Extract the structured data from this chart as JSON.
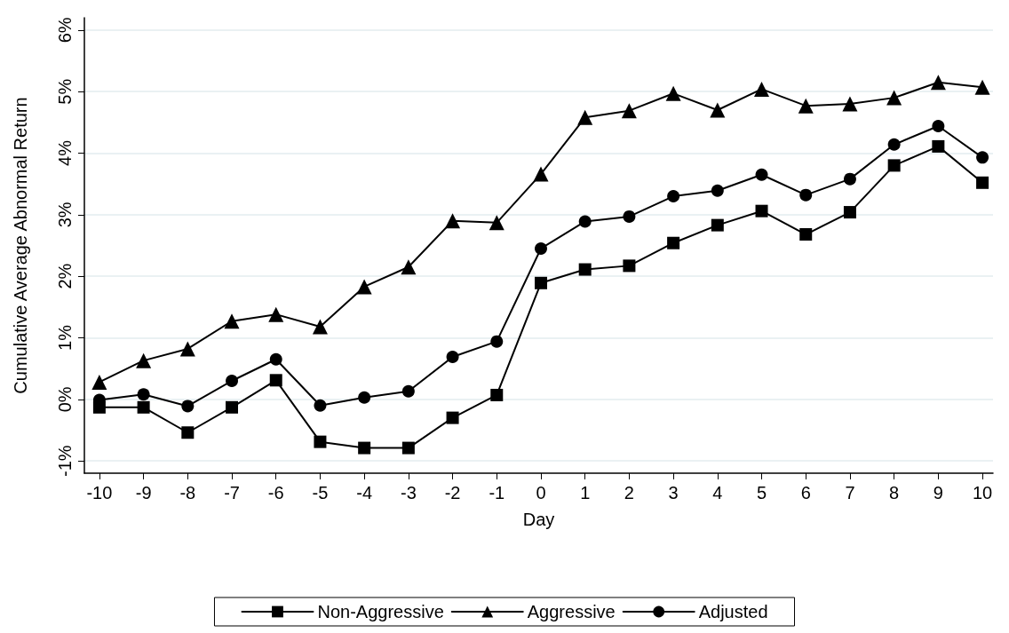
{
  "chart_data": {
    "type": "line",
    "xlabel": "Day",
    "ylabel": "Cumulative Average Abnormal Return",
    "x": [
      -10,
      -9,
      -8,
      -7,
      -6,
      -5,
      -4,
      -3,
      -2,
      -1,
      0,
      1,
      2,
      3,
      4,
      5,
      6,
      7,
      8,
      9,
      10
    ],
    "series": [
      {
        "name": "Non-Aggressive",
        "color": "#000000",
        "marker": "square",
        "values": [
          -0.13,
          -0.13,
          -0.54,
          -0.13,
          0.31,
          -0.69,
          -0.79,
          -0.79,
          -0.3,
          0.07,
          1.89,
          2.11,
          2.17,
          2.54,
          2.83,
          3.06,
          2.68,
          3.04,
          3.8,
          4.11,
          3.52
        ]
      },
      {
        "name": "Aggressive",
        "color": "#000000",
        "marker": "triangle",
        "values": [
          0.28,
          0.63,
          0.82,
          1.27,
          1.38,
          1.18,
          1.83,
          2.15,
          2.9,
          2.87,
          3.66,
          4.58,
          4.69,
          4.97,
          4.7,
          5.04,
          4.77,
          4.8,
          4.9,
          5.15,
          5.07
        ]
      },
      {
        "name": "Adjusted",
        "color": "#000000",
        "marker": "circle",
        "values": [
          -0.01,
          0.08,
          -0.11,
          0.3,
          0.65,
          -0.1,
          0.03,
          0.13,
          0.69,
          0.94,
          2.45,
          2.89,
          2.97,
          3.3,
          3.39,
          3.65,
          3.32,
          3.58,
          4.14,
          4.44,
          3.93
        ]
      }
    ],
    "xlim": [
      -10.34,
      10.24
    ],
    "xticks": [
      -10,
      -9,
      -8,
      -7,
      -6,
      -5,
      -4,
      -3,
      -2,
      -1,
      0,
      1,
      2,
      3,
      4,
      5,
      6,
      7,
      8,
      9,
      10
    ],
    "ylim": [
      -1.2,
      6.2
    ],
    "yticks": [
      {
        "value": -1,
        "label": "-1%"
      },
      {
        "value": 0,
        "label": "0%"
      },
      {
        "value": 1,
        "label": "1%"
      },
      {
        "value": 2,
        "label": "2%"
      },
      {
        "value": 3,
        "label": "3%"
      },
      {
        "value": 4,
        "label": "4%"
      },
      {
        "value": 5,
        "label": "5%"
      },
      {
        "value": 6,
        "label": "6%"
      }
    ],
    "grid": "y",
    "legend": "bottom",
    "line_style": "solid"
  }
}
